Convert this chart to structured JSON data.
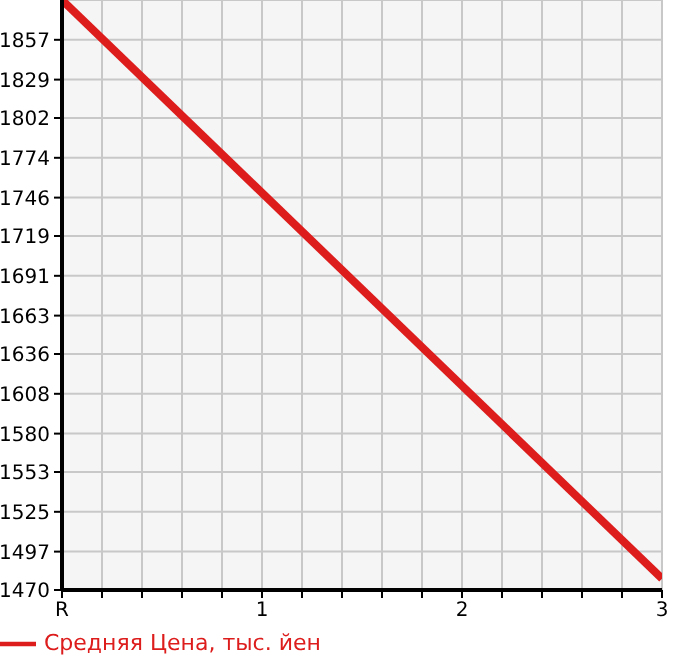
{
  "chart_data": {
    "type": "line",
    "x": [
      0,
      3
    ],
    "series": [
      {
        "name": "Средняя Цена, тыс. йен",
        "color": "#dd1c1c",
        "values": [
          1885,
          1478
        ]
      }
    ],
    "xlim": [
      0,
      3
    ],
    "xticks": [
      {
        "value": 0,
        "label": "R"
      },
      {
        "value": 0.2,
        "label": null
      },
      {
        "value": 0.4,
        "label": null
      },
      {
        "value": 0.6,
        "label": null
      },
      {
        "value": 0.8,
        "label": null
      },
      1,
      {
        "value": 1.2,
        "label": null
      },
      {
        "value": 1.4,
        "label": null
      },
      {
        "value": 1.6,
        "label": null
      },
      {
        "value": 1.8,
        "label": null
      },
      2,
      {
        "value": 2.2,
        "label": null
      },
      {
        "value": 2.4,
        "label": null
      },
      {
        "value": 2.6,
        "label": null
      },
      {
        "value": 2.8,
        "label": null
      },
      3
    ],
    "ylim": [
      1470,
      1885
    ],
    "yticks": [
      1470,
      1497,
      1525,
      1553,
      1580,
      1608,
      1636,
      1663,
      1691,
      1719,
      1746,
      1774,
      1802,
      1829,
      1857
    ],
    "grid": true,
    "legend": "bottom left",
    "marker": "none",
    "line_style": "solid"
  }
}
